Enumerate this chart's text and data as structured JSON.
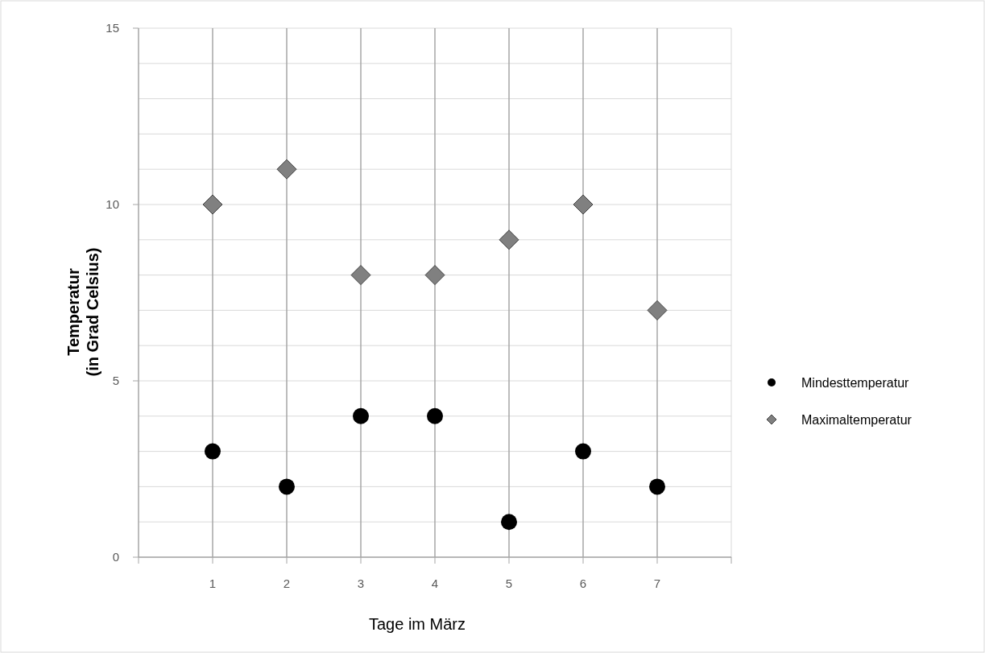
{
  "chart_data": {
    "type": "scatter",
    "xlabel": "Tage im März",
    "ylabel": "Temperatur\n(in Grad Celsius)",
    "xlim": [
      0,
      8
    ],
    "xticks": [
      1,
      2,
      3,
      4,
      5,
      6,
      7
    ],
    "ylim": [
      0,
      15
    ],
    "yticks": [
      0,
      {
        "value": 1,
        "label": null
      },
      {
        "value": 2,
        "label": null
      },
      {
        "value": 3,
        "label": null
      },
      {
        "value": 4,
        "label": null
      },
      5,
      {
        "value": 6,
        "label": null
      },
      {
        "value": 7,
        "label": null
      },
      {
        "value": 8,
        "label": null
      },
      {
        "value": 9,
        "label": null
      },
      10,
      {
        "value": 11,
        "label": null
      },
      {
        "value": 12,
        "label": null
      },
      {
        "value": 13,
        "label": null
      },
      {
        "value": 14,
        "label": null
      },
      15
    ],
    "grid": true,
    "legend": "right",
    "x": [
      1,
      2,
      3,
      4,
      5,
      6,
      7
    ],
    "series": [
      {
        "name": "Mindesttemperatur",
        "color": "#000000",
        "marker": "circle",
        "values": [
          3,
          2,
          4,
          4,
          1,
          3,
          2
        ]
      },
      {
        "name": "Maximaltemperatur",
        "color": "#808080",
        "marker": "diamond",
        "values": [
          10,
          11,
          8,
          8,
          9,
          10,
          7
        ]
      }
    ]
  }
}
